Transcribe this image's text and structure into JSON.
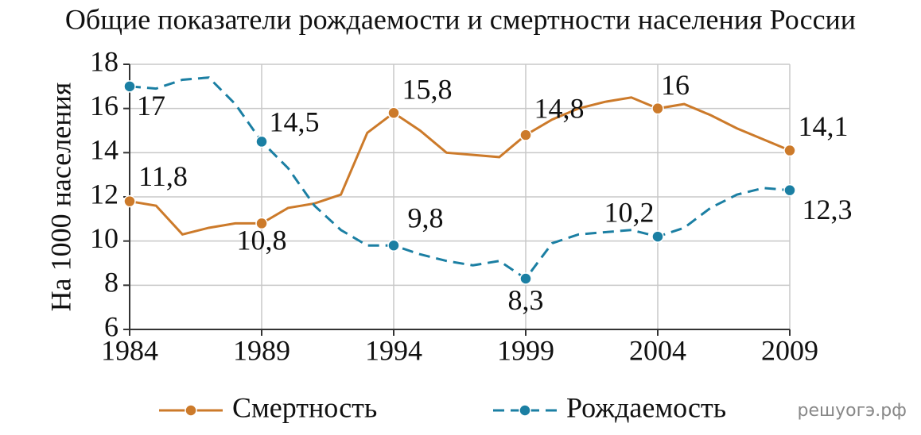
{
  "chart_data": {
    "type": "line",
    "title": "Общие показатели рождаемости и смертности населения России",
    "y_label": "На 1000 населения",
    "watermark": "решуогэ.рф",
    "x": [
      1984,
      1985,
      1986,
      1987,
      1988,
      1989,
      1990,
      1991,
      1992,
      1993,
      1994,
      1995,
      1996,
      1997,
      1998,
      1999,
      2000,
      2001,
      2002,
      2003,
      2004,
      2005,
      2006,
      2007,
      2008,
      2009
    ],
    "xlim": [
      1984,
      2009
    ],
    "xticks": [
      1984,
      1989,
      1994,
      1999,
      2004,
      2009
    ],
    "ylim": [
      6,
      18
    ],
    "yticks": [
      6,
      8,
      10,
      12,
      14,
      16,
      18
    ],
    "grid": true,
    "series": [
      {
        "name": "Смертность",
        "color": "#cc7a2a",
        "dashed": false,
        "values": [
          11.8,
          11.6,
          10.3,
          10.6,
          10.8,
          10.8,
          11.5,
          11.7,
          12.1,
          14.9,
          15.8,
          15.0,
          14.0,
          13.9,
          13.8,
          14.8,
          15.5,
          16.0,
          16.3,
          16.5,
          16.0,
          16.2,
          15.7,
          15.1,
          14.6,
          14.1
        ],
        "value_labels": [
          "11,8",
          null,
          null,
          null,
          null,
          "10,8",
          null,
          null,
          null,
          null,
          "15,8",
          null,
          null,
          null,
          null,
          "14,8",
          null,
          null,
          null,
          null,
          "16",
          null,
          null,
          null,
          null,
          "14,1"
        ]
      },
      {
        "name": "Рождаемость",
        "color": "#1b7fa3",
        "dashed": true,
        "values": [
          17.0,
          16.9,
          17.3,
          17.4,
          16.2,
          14.5,
          13.3,
          11.6,
          10.5,
          9.8,
          9.8,
          9.4,
          9.1,
          8.9,
          9.1,
          8.3,
          9.9,
          10.3,
          10.4,
          10.5,
          10.2,
          10.6,
          11.5,
          12.1,
          12.4,
          12.3
        ],
        "value_labels": [
          "17",
          null,
          null,
          null,
          null,
          "14,5",
          null,
          null,
          null,
          null,
          "9,8",
          null,
          null,
          null,
          null,
          "8,3",
          null,
          null,
          null,
          null,
          "10,2",
          null,
          null,
          null,
          null,
          "12,3"
        ]
      }
    ]
  }
}
